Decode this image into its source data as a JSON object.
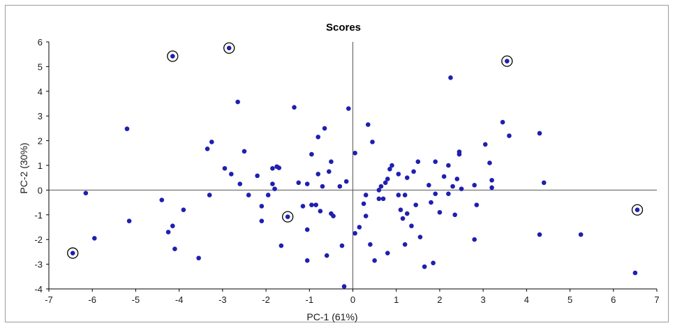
{
  "chart_data": {
    "type": "scatter",
    "title": "Scores",
    "xlabel": "PC-1 (61%)",
    "ylabel": "PC-2 (30%)",
    "xlim": [
      -7,
      7
    ],
    "ylim": [
      -4,
      6
    ],
    "xticks": [
      -7,
      -6,
      -5,
      -4,
      -3,
      -2,
      -1,
      0,
      1,
      2,
      3,
      4,
      5,
      6,
      7
    ],
    "yticks": [
      -4,
      -3,
      -2,
      -1,
      0,
      1,
      2,
      3,
      4,
      5,
      6
    ],
    "grid": false,
    "zero_lines": true,
    "colors": {
      "point": "#1f1fb0",
      "ring": "#000000",
      "axes": "#000000",
      "frame": "#9a9a9a"
    },
    "points": [
      [
        -4.15,
        5.42
      ],
      [
        -2.85,
        5.75
      ],
      [
        3.55,
        5.22
      ],
      [
        -6.45,
        -2.55
      ],
      [
        -1.5,
        -1.08
      ],
      [
        6.55,
        -0.8
      ],
      [
        -5.2,
        2.48
      ],
      [
        -6.15,
        -0.12
      ],
      [
        -5.95,
        -1.95
      ],
      [
        -5.15,
        -1.25
      ],
      [
        -4.4,
        -0.4
      ],
      [
        -4.25,
        -1.7
      ],
      [
        -4.15,
        -1.45
      ],
      [
        -4.1,
        -2.38
      ],
      [
        -3.9,
        -0.8
      ],
      [
        -3.55,
        -2.75
      ],
      [
        -3.35,
        1.67
      ],
      [
        -3.25,
        1.95
      ],
      [
        -3.3,
        -0.2
      ],
      [
        -2.95,
        0.88
      ],
      [
        -2.8,
        0.65
      ],
      [
        -2.65,
        3.57
      ],
      [
        -2.6,
        0.25
      ],
      [
        -2.5,
        1.57
      ],
      [
        -2.4,
        -0.2
      ],
      [
        -2.2,
        0.58
      ],
      [
        -2.1,
        -0.65
      ],
      [
        -2.1,
        -1.25
      ],
      [
        -1.95,
        -0.2
      ],
      [
        -1.85,
        0.88
      ],
      [
        -1.85,
        0.25
      ],
      [
        -1.75,
        0.95
      ],
      [
        -1.7,
        0.9
      ],
      [
        -1.65,
        -2.25
      ],
      [
        -1.8,
        0.05
      ],
      [
        -1.35,
        3.35
      ],
      [
        -1.25,
        0.3
      ],
      [
        -1.15,
        -0.65
      ],
      [
        -1.05,
        -1.6
      ],
      [
        -1.05,
        -2.85
      ],
      [
        -1.05,
        0.25
      ],
      [
        -0.95,
        1.45
      ],
      [
        -0.95,
        -0.6
      ],
      [
        -0.85,
        -0.6
      ],
      [
        -0.8,
        0.65
      ],
      [
        -0.8,
        2.15
      ],
      [
        -0.65,
        2.5
      ],
      [
        -0.75,
        -0.85
      ],
      [
        -0.7,
        0.15
      ],
      [
        -0.6,
        -2.65
      ],
      [
        -0.55,
        0.75
      ],
      [
        -0.5,
        -0.95
      ],
      [
        -0.45,
        -1.05
      ],
      [
        -0.5,
        1.15
      ],
      [
        -0.3,
        0.15
      ],
      [
        -0.25,
        -2.25
      ],
      [
        -0.15,
        0.35
      ],
      [
        -0.1,
        3.3
      ],
      [
        -0.2,
        -3.9
      ],
      [
        0.05,
        1.5
      ],
      [
        0.05,
        -1.75
      ],
      [
        0.15,
        -1.5
      ],
      [
        0.25,
        -0.55
      ],
      [
        0.3,
        -0.2
      ],
      [
        0.3,
        -1.05
      ],
      [
        0.35,
        2.65
      ],
      [
        0.4,
        -2.2
      ],
      [
        0.45,
        1.95
      ],
      [
        0.5,
        -2.85
      ],
      [
        0.6,
        -0.35
      ],
      [
        0.6,
        0.0
      ],
      [
        0.65,
        0.15
      ],
      [
        0.7,
        -0.35
      ],
      [
        0.75,
        0.3
      ],
      [
        0.8,
        0.45
      ],
      [
        0.8,
        -2.55
      ],
      [
        0.85,
        0.85
      ],
      [
        0.9,
        1.0
      ],
      [
        1.05,
        0.65
      ],
      [
        1.05,
        -0.2
      ],
      [
        1.1,
        -0.8
      ],
      [
        1.15,
        -1.15
      ],
      [
        1.2,
        -0.2
      ],
      [
        1.2,
        -2.2
      ],
      [
        1.25,
        -0.95
      ],
      [
        1.25,
        0.5
      ],
      [
        1.35,
        -1.45
      ],
      [
        1.4,
        0.75
      ],
      [
        1.45,
        -0.6
      ],
      [
        1.5,
        1.15
      ],
      [
        1.55,
        -1.9
      ],
      [
        1.65,
        -3.1
      ],
      [
        1.75,
        0.2
      ],
      [
        1.8,
        -0.5
      ],
      [
        1.85,
        -2.95
      ],
      [
        1.9,
        1.15
      ],
      [
        1.9,
        -0.15
      ],
      [
        2.0,
        -0.9
      ],
      [
        2.1,
        0.55
      ],
      [
        2.2,
        1.0
      ],
      [
        2.2,
        -0.15
      ],
      [
        2.25,
        4.55
      ],
      [
        2.3,
        0.15
      ],
      [
        2.35,
        -1.0
      ],
      [
        2.4,
        0.45
      ],
      [
        2.45,
        1.55
      ],
      [
        2.45,
        1.45
      ],
      [
        2.5,
        0.05
      ],
      [
        2.8,
        -2.0
      ],
      [
        2.8,
        0.2
      ],
      [
        2.85,
        -0.6
      ],
      [
        3.05,
        1.85
      ],
      [
        3.15,
        1.1
      ],
      [
        3.2,
        0.4
      ],
      [
        3.2,
        0.1
      ],
      [
        3.45,
        2.75
      ],
      [
        3.6,
        2.2
      ],
      [
        4.3,
        2.3
      ],
      [
        4.3,
        -1.8
      ],
      [
        4.4,
        0.3
      ],
      [
        5.25,
        -1.8
      ],
      [
        6.5,
        -3.35
      ]
    ],
    "highlighted": [
      0,
      1,
      2,
      3,
      4,
      5
    ]
  }
}
